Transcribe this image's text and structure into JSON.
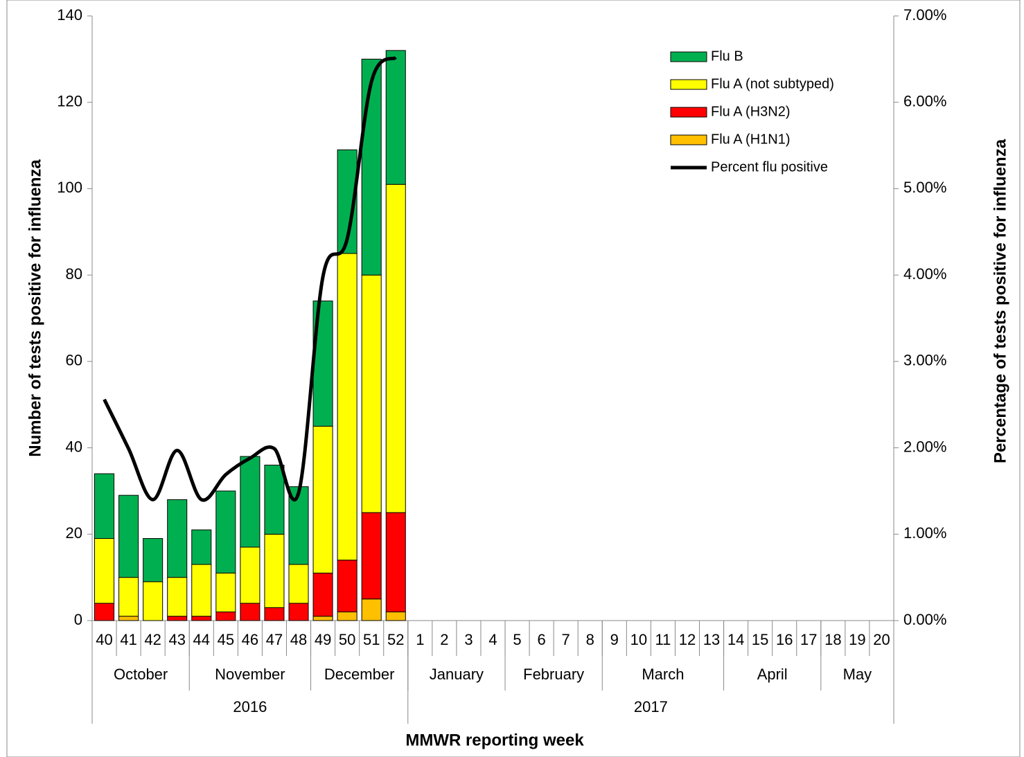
{
  "chart_data": {
    "type": "bar",
    "stacked": true,
    "y_label": "Number of tests positive for influenza",
    "y2_label": "Percentage  of  tests  positive for influenza",
    "x_label": "MMWR reporting week",
    "categories": [
      "40",
      "41",
      "42",
      "43",
      "44",
      "45",
      "46",
      "47",
      "48",
      "49",
      "50",
      "51",
      "52",
      "1",
      "2",
      "3",
      "4",
      "5",
      "6",
      "7",
      "8",
      "9",
      "10",
      "11",
      "12",
      "13",
      "14",
      "15",
      "16",
      "17",
      "18",
      "19",
      "20"
    ],
    "months": [
      {
        "name": "October",
        "span": 4
      },
      {
        "name": "November",
        "span": 5
      },
      {
        "name": "December",
        "span": 4
      },
      {
        "name": "January",
        "span": 4
      },
      {
        "name": "February",
        "span": 4
      },
      {
        "name": "March",
        "span": 5
      },
      {
        "name": "April",
        "span": 4
      },
      {
        "name": "May",
        "span": 3
      }
    ],
    "years": [
      {
        "name": "2016",
        "span": 13
      },
      {
        "name": "2017",
        "span": 20
      }
    ],
    "series": [
      {
        "name": "Flu A (H1N1)",
        "color": "#ffc000",
        "values": [
          0,
          1,
          0,
          0,
          0,
          0,
          0,
          0,
          0,
          1,
          2,
          5,
          2,
          null,
          null,
          null,
          null,
          null,
          null,
          null,
          null,
          null,
          null,
          null,
          null,
          null,
          null,
          null,
          null,
          null,
          null,
          null,
          null
        ]
      },
      {
        "name": "Flu A (H3N2)",
        "color": "#ff0000",
        "values": [
          4,
          0,
          0,
          1,
          1,
          2,
          4,
          3,
          4,
          10,
          12,
          20,
          23,
          null,
          null,
          null,
          null,
          null,
          null,
          null,
          null,
          null,
          null,
          null,
          null,
          null,
          null,
          null,
          null,
          null,
          null,
          null,
          null
        ]
      },
      {
        "name": "Flu A (not subtyped)",
        "color": "#ffff00",
        "values": [
          15,
          9,
          9,
          9,
          12,
          9,
          13,
          17,
          9,
          34,
          71,
          55,
          76,
          null,
          null,
          null,
          null,
          null,
          null,
          null,
          null,
          null,
          null,
          null,
          null,
          null,
          null,
          null,
          null,
          null,
          null,
          null,
          null
        ]
      },
      {
        "name": "Flu B",
        "color": "#00b050",
        "values": [
          15,
          19,
          10,
          18,
          8,
          19,
          21,
          16,
          18,
          29,
          24,
          50,
          31,
          null,
          null,
          null,
          null,
          null,
          null,
          null,
          null,
          null,
          null,
          null,
          null,
          null,
          null,
          null,
          null,
          null,
          null,
          null,
          null
        ]
      },
      {
        "name": "Percent flu positive",
        "color": "#000000",
        "type": "line",
        "axis": "y2",
        "values": [
          2.56,
          1.99,
          1.4,
          1.97,
          1.4,
          1.69,
          1.88,
          1.99,
          1.48,
          3.98,
          4.42,
          6.24,
          6.52,
          null,
          null,
          null,
          null,
          null,
          null,
          null,
          null,
          null,
          null,
          null,
          null,
          null,
          null,
          null,
          null,
          null,
          null,
          null,
          null
        ]
      }
    ],
    "ylim": [
      0,
      140
    ],
    "yticks": [
      0,
      20,
      40,
      60,
      80,
      100,
      120,
      140
    ],
    "y2lim": [
      0,
      7
    ],
    "y2ticks": [
      {
        "value": 0,
        "label": "0.00%"
      },
      {
        "value": 1,
        "label": "1.00%"
      },
      {
        "value": 2,
        "label": "2.00%"
      },
      {
        "value": 3,
        "label": "3.00%"
      },
      {
        "value": 4,
        "label": "4.00%"
      },
      {
        "value": 5,
        "label": "5.00%"
      },
      {
        "value": 6,
        "label": "6.00%"
      },
      {
        "value": 7,
        "label": "7.00%"
      }
    ],
    "grid": false,
    "legend": "upper right"
  }
}
